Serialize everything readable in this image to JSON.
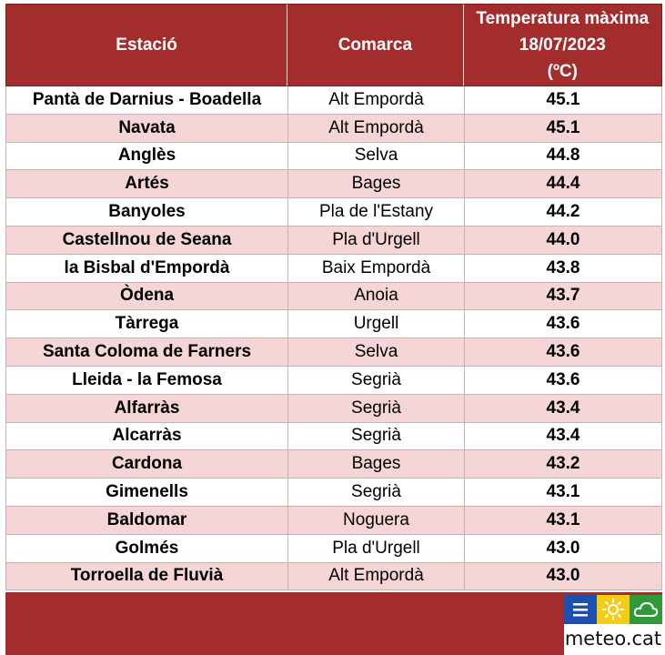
{
  "header": {
    "col_station": "Estació",
    "col_comarca": "Comarca",
    "col_temp_line1": "Temperatura màxima",
    "col_temp_line2": "18/07/2023",
    "col_temp_line3": "(ºC)"
  },
  "rows": [
    {
      "station": "Pantà de Darnius - Boadella",
      "comarca": "Alt Empordà",
      "temp": "45.1"
    },
    {
      "station": "Navata",
      "comarca": "Alt Empordà",
      "temp": "45.1"
    },
    {
      "station": "Anglès",
      "comarca": "Selva",
      "temp": "44.8"
    },
    {
      "station": "Artés",
      "comarca": "Bages",
      "temp": "44.4"
    },
    {
      "station": "Banyoles",
      "comarca": "Pla de l'Estany",
      "temp": "44.2"
    },
    {
      "station": "Castellnou de Seana",
      "comarca": "Pla d'Urgell",
      "temp": "44.0"
    },
    {
      "station": "la Bisbal d'Empordà",
      "comarca": "Baix Empordà",
      "temp": "43.8"
    },
    {
      "station": "Òdena",
      "comarca": "Anoia",
      "temp": "43.7"
    },
    {
      "station": "Tàrrega",
      "comarca": "Urgell",
      "temp": "43.6"
    },
    {
      "station": "Santa Coloma de Farners",
      "comarca": "Selva",
      "temp": "43.6"
    },
    {
      "station": "Lleida - la Femosa",
      "comarca": "Segrià",
      "temp": "43.6"
    },
    {
      "station": "Alfarràs",
      "comarca": "Segrià",
      "temp": "43.4"
    },
    {
      "station": "Alcarràs",
      "comarca": "Segrià",
      "temp": "43.4"
    },
    {
      "station": "Cardona",
      "comarca": "Bages",
      "temp": "43.2"
    },
    {
      "station": "Gimenells",
      "comarca": "Segrià",
      "temp": "43.1"
    },
    {
      "station": "Baldomar",
      "comarca": "Noguera",
      "temp": "43.1"
    },
    {
      "station": "Golmés",
      "comarca": "Pla d'Urgell",
      "temp": "43.0"
    },
    {
      "station": "Torroella de Fluvià",
      "comarca": "Alt Empordà",
      "temp": "43.0"
    }
  ],
  "logo": {
    "wordmark": "meteo.cat",
    "icons": [
      "menu-lines-icon",
      "sun-icon",
      "cloud-icon"
    ]
  },
  "colors": {
    "header_bg": "#a32c2c",
    "alt_row_bg": "#f5d5d6",
    "logo_blue": "#1c4fb0",
    "logo_yellow": "#f4cc16",
    "logo_green": "#2f9a3a"
  },
  "chart_data": {
    "type": "table",
    "columns": [
      "Estació",
      "Comarca",
      "Temperatura màxima 18/07/2023 (ºC)"
    ],
    "rows": [
      [
        "Pantà de Darnius - Boadella",
        "Alt Empordà",
        45.1
      ],
      [
        "Navata",
        "Alt Empordà",
        45.1
      ],
      [
        "Anglès",
        "Selva",
        44.8
      ],
      [
        "Artés",
        "Bages",
        44.4
      ],
      [
        "Banyoles",
        "Pla de l'Estany",
        44.2
      ],
      [
        "Castellnou de Seana",
        "Pla d'Urgell",
        44.0
      ],
      [
        "la Bisbal d'Empordà",
        "Baix Empordà",
        43.8
      ],
      [
        "Òdena",
        "Anoia",
        43.7
      ],
      [
        "Tàrrega",
        "Urgell",
        43.6
      ],
      [
        "Santa Coloma de Farners",
        "Selva",
        43.6
      ],
      [
        "Lleida - la Femosa",
        "Segrià",
        43.6
      ],
      [
        "Alfarràs",
        "Segrià",
        43.4
      ],
      [
        "Alcarràs",
        "Segrià",
        43.4
      ],
      [
        "Cardona",
        "Bages",
        43.2
      ],
      [
        "Gimenells",
        "Segrià",
        43.1
      ],
      [
        "Baldomar",
        "Noguera",
        43.1
      ],
      [
        "Golmés",
        "Pla d'Urgell",
        43.0
      ],
      [
        "Torroella de Fluvià",
        "Alt Empordà",
        43.0
      ]
    ]
  }
}
